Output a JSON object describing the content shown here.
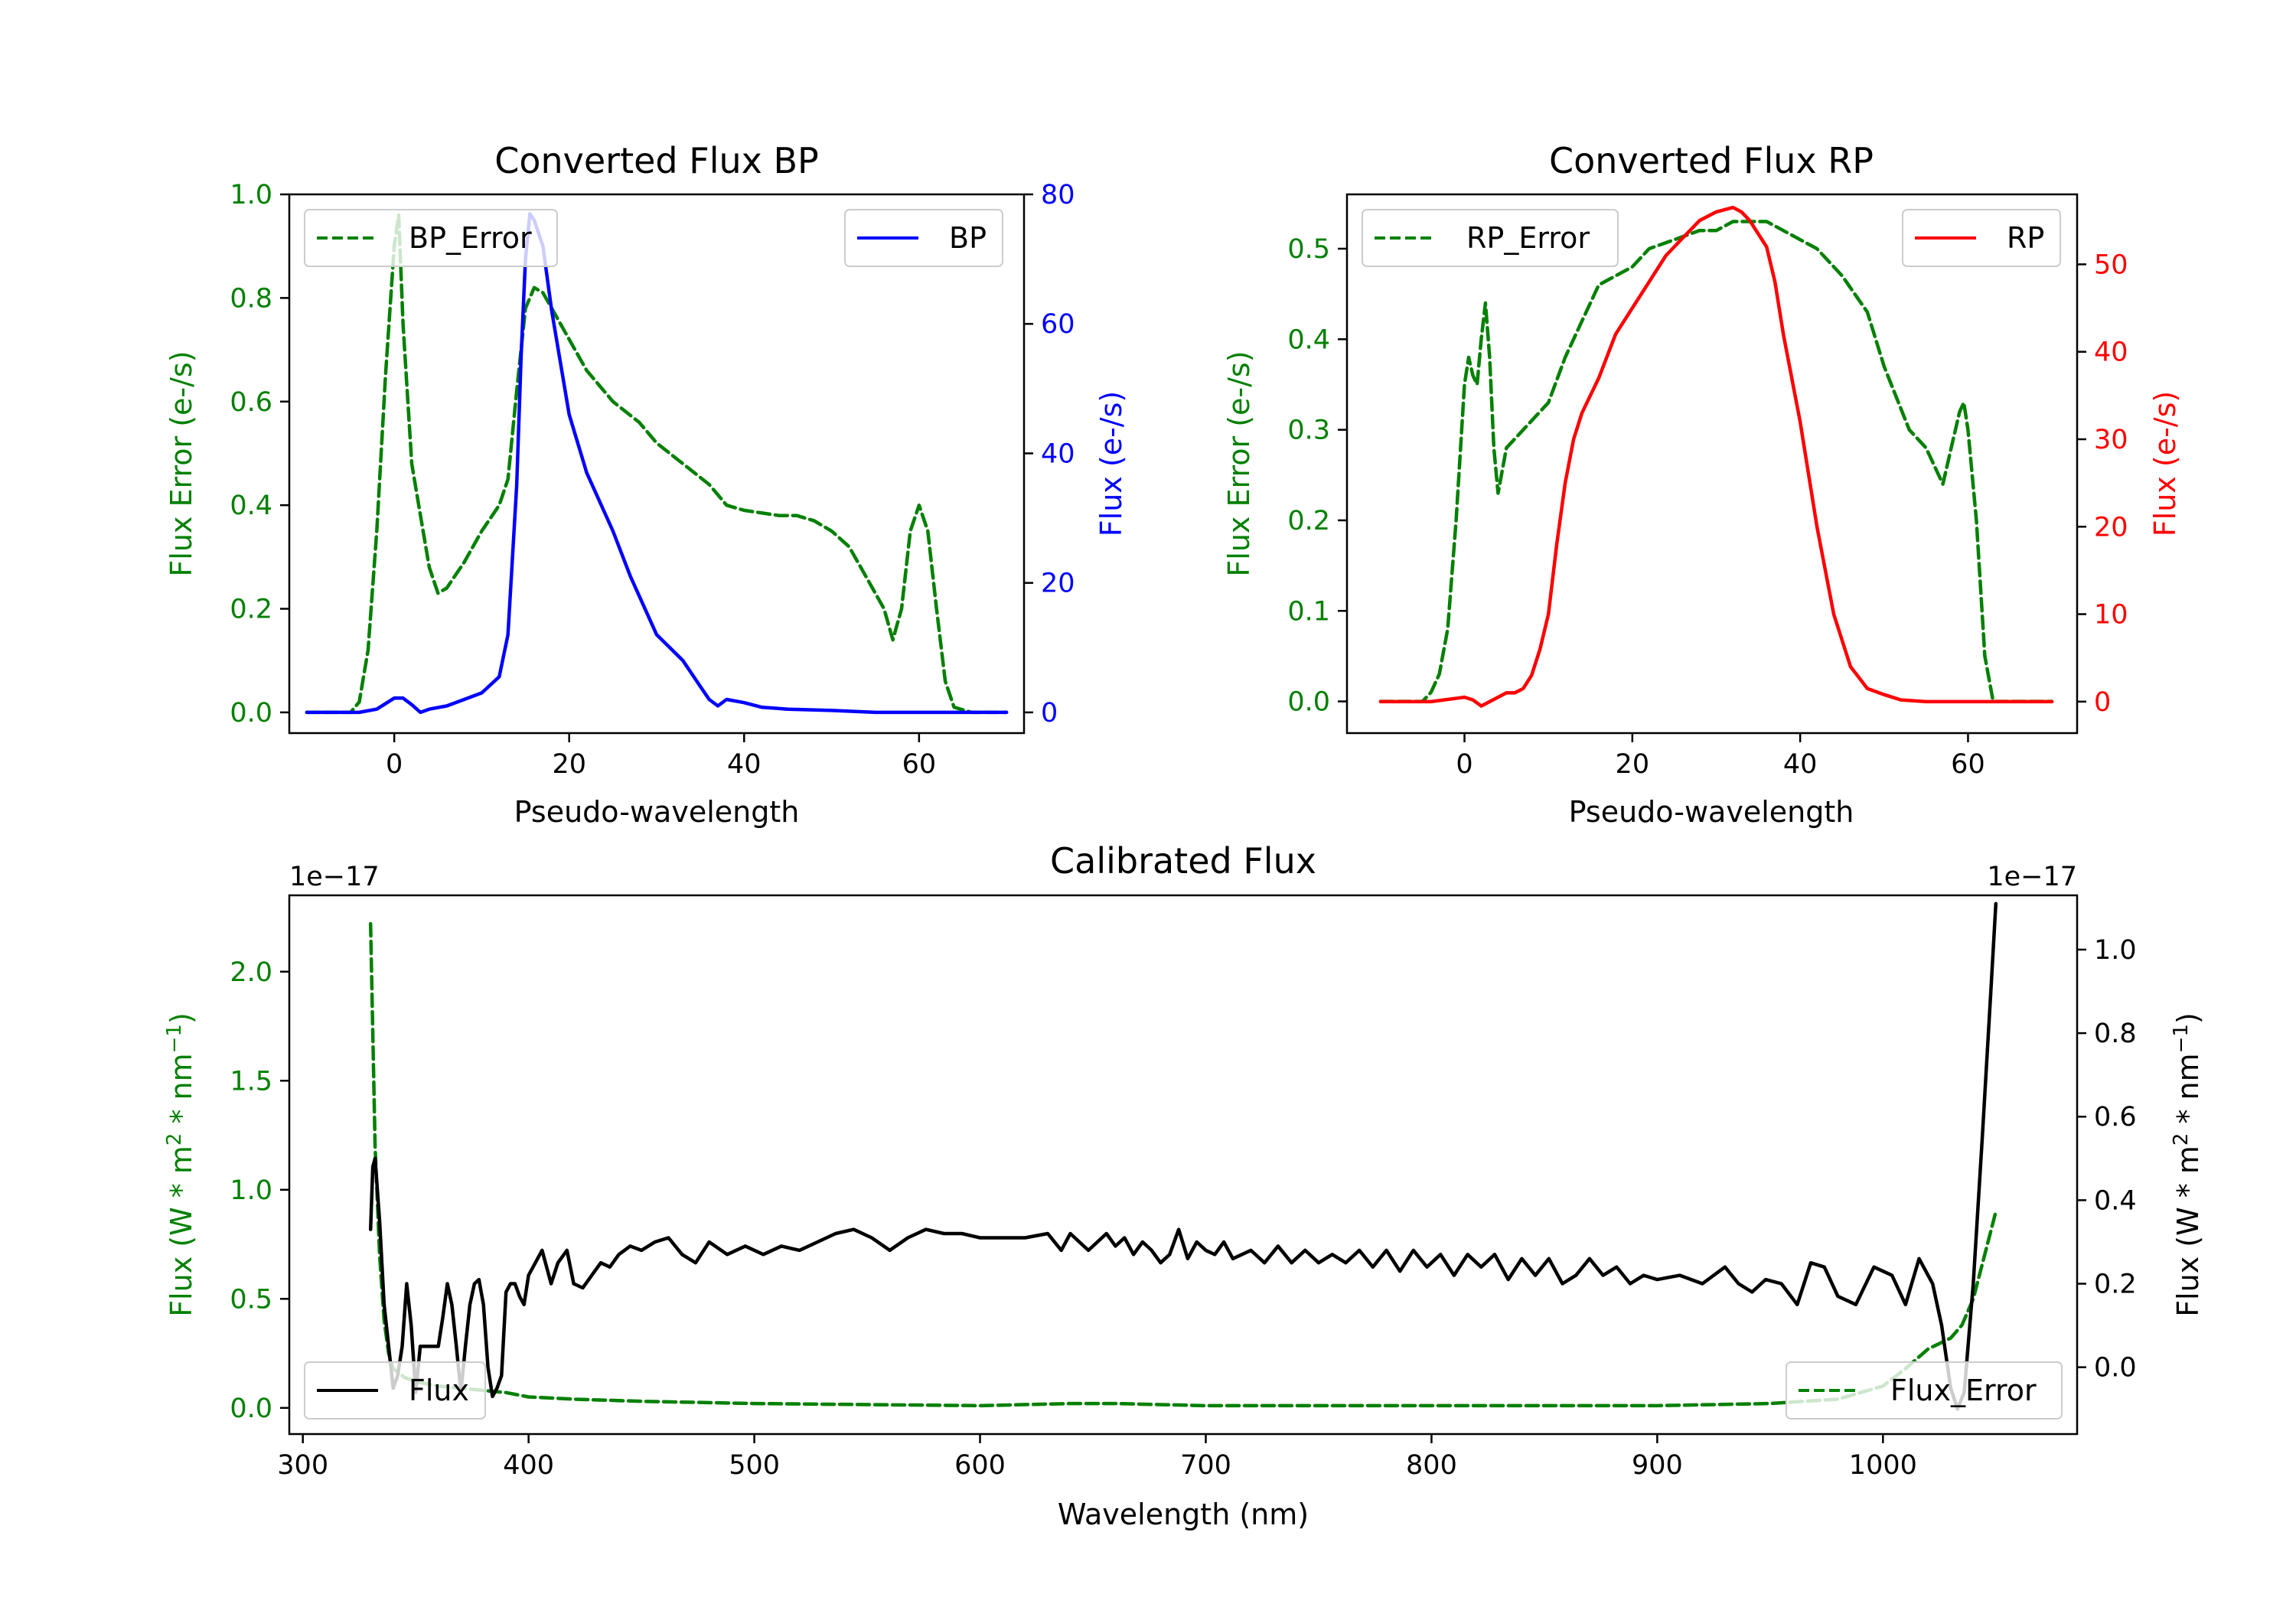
{
  "chart_data": [
    {
      "id": "bp",
      "type": "line",
      "title": "Converted Flux BP",
      "xlabel": "Pseudo-wavelength",
      "ylabel_left": "Flux Error (e-/s)",
      "ylabel_right": "Flux (e-/s)",
      "xlim": [
        -12,
        72
      ],
      "ylim_left": [
        -0.04,
        1.0
      ],
      "ylim_right": [
        -3.2,
        80
      ],
      "xticks": [
        0,
        20,
        40,
        60
      ],
      "yticks_left": [
        "0.0",
        "0.2",
        "0.4",
        "0.6",
        "0.8",
        "1.0"
      ],
      "yticks_right": [
        "0",
        "20",
        "40",
        "60",
        "80"
      ],
      "left_color": "#008000",
      "right_color": "#0000ff",
      "legend_left": "BP_Error",
      "legend_right": "BP",
      "series": [
        {
          "name": "BP_Error",
          "axis": "left",
          "color": "#008000",
          "dash": true,
          "x": [
            -10,
            -5,
            -4,
            -3,
            -2,
            -1,
            0,
            0.5,
            1,
            2,
            3,
            4,
            5,
            6,
            8,
            10,
            12,
            13,
            14,
            15,
            16,
            17,
            18,
            20,
            22,
            25,
            28,
            30,
            33,
            36,
            38,
            40,
            44,
            46,
            48,
            50,
            52,
            54,
            56,
            57,
            58,
            59,
            60,
            61,
            62,
            63,
            64,
            66,
            70
          ],
          "values": [
            0,
            0,
            0.02,
            0.12,
            0.35,
            0.65,
            0.9,
            0.96,
            0.75,
            0.48,
            0.38,
            0.28,
            0.23,
            0.24,
            0.29,
            0.35,
            0.4,
            0.45,
            0.62,
            0.78,
            0.82,
            0.81,
            0.78,
            0.72,
            0.66,
            0.6,
            0.56,
            0.52,
            0.48,
            0.44,
            0.4,
            0.39,
            0.38,
            0.38,
            0.37,
            0.35,
            0.32,
            0.26,
            0.2,
            0.14,
            0.2,
            0.35,
            0.4,
            0.35,
            0.2,
            0.06,
            0.01,
            0,
            0
          ]
        },
        {
          "name": "BP",
          "axis": "right",
          "color": "#0000ff",
          "dash": false,
          "x": [
            -10,
            -4,
            -2,
            0,
            1,
            2,
            3,
            4,
            6,
            8,
            10,
            12,
            13,
            14,
            14.5,
            15,
            15.5,
            16,
            17,
            18,
            19,
            20,
            22,
            25,
            27,
            30,
            33,
            35,
            36,
            37,
            38,
            40,
            42,
            45,
            50,
            55,
            60,
            65,
            70
          ],
          "values": [
            0,
            0,
            0.5,
            2.2,
            2.2,
            1.2,
            0,
            0.5,
            1,
            2,
            3,
            5.5,
            12,
            35,
            55,
            70,
            77,
            76,
            72,
            62,
            54,
            46,
            37,
            28,
            21,
            12,
            8,
            4,
            2,
            1,
            2,
            1.5,
            0.8,
            0.5,
            0.3,
            0,
            0,
            0,
            0
          ]
        }
      ]
    },
    {
      "id": "rp",
      "type": "line",
      "title": "Converted Flux RP",
      "xlabel": "Pseudo-wavelength",
      "ylabel_left": "Flux Error (e-/s)",
      "ylabel_right": "Flux (e-/s)",
      "xlim": [
        -14,
        73
      ],
      "ylim_left": [
        -0.035,
        0.56
      ],
      "ylim_right": [
        -3.6,
        58
      ],
      "xticks": [
        0,
        20,
        40,
        60
      ],
      "yticks_left": [
        "0.0",
        "0.1",
        "0.2",
        "0.3",
        "0.4",
        "0.5"
      ],
      "yticks_right": [
        "0",
        "10",
        "20",
        "30",
        "40",
        "50"
      ],
      "left_color": "#008000",
      "right_color": "#ff0000",
      "legend_left": "RP_Error",
      "legend_right": "RP",
      "series": [
        {
          "name": "RP_Error",
          "axis": "left",
          "color": "#008000",
          "dash": true,
          "x": [
            -10,
            -5,
            -4,
            -3,
            -2,
            -1,
            0,
            0.5,
            1,
            1.5,
            2,
            2.5,
            3,
            3.5,
            4,
            5,
            7,
            8,
            10,
            12,
            14,
            16,
            18,
            20,
            22,
            25,
            28,
            30,
            32,
            34,
            36,
            38,
            40,
            42,
            45,
            48,
            50,
            53,
            55,
            56,
            57,
            58,
            59,
            59.5,
            60,
            61,
            62,
            63,
            65,
            70
          ],
          "values": [
            0,
            0,
            0.01,
            0.03,
            0.08,
            0.2,
            0.35,
            0.38,
            0.36,
            0.35,
            0.4,
            0.44,
            0.38,
            0.28,
            0.23,
            0.28,
            0.3,
            0.31,
            0.33,
            0.38,
            0.42,
            0.46,
            0.47,
            0.48,
            0.5,
            0.51,
            0.52,
            0.52,
            0.53,
            0.53,
            0.53,
            0.52,
            0.51,
            0.5,
            0.47,
            0.43,
            0.37,
            0.3,
            0.28,
            0.26,
            0.24,
            0.28,
            0.32,
            0.33,
            0.3,
            0.2,
            0.05,
            0,
            0,
            0
          ]
        },
        {
          "name": "RP",
          "axis": "right",
          "color": "#ff0000",
          "dash": false,
          "x": [
            -10,
            -4,
            0,
            1,
            2,
            3,
            4,
            5,
            6,
            7,
            8,
            9,
            10,
            11,
            12,
            13,
            14,
            16,
            18,
            20,
            22,
            24,
            26,
            28,
            30,
            32,
            33,
            34,
            36,
            37,
            38,
            40,
            42,
            44,
            46,
            48,
            50,
            52,
            55,
            58,
            60,
            65,
            70
          ],
          "values": [
            0,
            0,
            0.5,
            0.2,
            -0.5,
            0,
            0.5,
            1,
            1,
            1.5,
            3,
            6,
            10,
            18,
            25,
            30,
            33,
            37,
            42,
            45,
            48,
            51,
            53,
            55,
            56,
            56.5,
            56,
            55,
            52,
            48,
            42,
            32,
            20,
            10,
            4,
            1.5,
            0.8,
            0.2,
            0,
            0,
            0,
            0,
            0
          ]
        }
      ]
    },
    {
      "id": "cal",
      "type": "line",
      "title": "Calibrated Flux",
      "xlabel": "Wavelength (nm)",
      "ylabel_left_main": "Flux (W * m",
      "ylabel_right_main": "Flux (W * m",
      "ylabel_sup1": "2",
      "ylabel_mid": " * nm",
      "ylabel_sup2": "−1",
      "ylabel_end": ")",
      "offset_left": "1e−17",
      "offset_right": "1e−17",
      "xlim": [
        294,
        1086
      ],
      "ylim_left": [
        -0.12,
        2.35
      ],
      "ylim_right": [
        -0.16,
        1.13
      ],
      "xticks": [
        300,
        400,
        500,
        600,
        700,
        800,
        900,
        1000
      ],
      "yticks_left": [
        "0.0",
        "0.5",
        "1.0",
        "1.5",
        "2.0"
      ],
      "yticks_right": [
        "0.0",
        "0.2",
        "0.4",
        "0.6",
        "0.8",
        "1.0"
      ],
      "left_color": "#008000",
      "right_color": "#000000",
      "legend_left": "Flux",
      "legend_right": "Flux_Error",
      "series": [
        {
          "name": "Flux_Error",
          "axis": "left",
          "color": "#008000",
          "dash": true,
          "x": [
            330,
            332,
            334,
            336,
            338,
            340,
            345,
            350,
            360,
            370,
            380,
            390,
            400,
            420,
            450,
            500,
            600,
            640,
            660,
            700,
            800,
            900,
            950,
            980,
            1000,
            1010,
            1020,
            1030,
            1035,
            1040,
            1045,
            1050
          ],
          "values": [
            2.22,
            1.2,
            0.7,
            0.4,
            0.25,
            0.18,
            0.14,
            0.12,
            0.1,
            0.09,
            0.08,
            0.07,
            0.05,
            0.04,
            0.03,
            0.02,
            0.01,
            0.02,
            0.02,
            0.01,
            0.01,
            0.01,
            0.02,
            0.04,
            0.1,
            0.18,
            0.27,
            0.32,
            0.38,
            0.5,
            0.7,
            0.9
          ]
        },
        {
          "name": "Flux",
          "axis": "right",
          "color": "#000000",
          "dash": false,
          "x": [
            330,
            331,
            332,
            334,
            336,
            338,
            340,
            342,
            344,
            346,
            348,
            350,
            352,
            354,
            356,
            358,
            360,
            362,
            364,
            366,
            368,
            370,
            372,
            374,
            376,
            378,
            380,
            382,
            384,
            386,
            388,
            390,
            392,
            394,
            396,
            398,
            400,
            403,
            406,
            410,
            413,
            417,
            420,
            424,
            428,
            432,
            436,
            440,
            445,
            450,
            456,
            462,
            468,
            474,
            480,
            488,
            496,
            504,
            512,
            520,
            528,
            536,
            544,
            552,
            560,
            568,
            576,
            584,
            592,
            600,
            610,
            620,
            630,
            636,
            640,
            644,
            648,
            652,
            656,
            660,
            664,
            668,
            672,
            676,
            680,
            684,
            688,
            692,
            696,
            700,
            704,
            708,
            712,
            716,
            720,
            726,
            732,
            738,
            744,
            750,
            756,
            762,
            768,
            774,
            780,
            786,
            792,
            798,
            804,
            810,
            816,
            822,
            828,
            834,
            840,
            846,
            852,
            858,
            864,
            870,
            876,
            882,
            888,
            894,
            900,
            910,
            920,
            930,
            936,
            942,
            948,
            955,
            962,
            968,
            974,
            980,
            988,
            996,
            1004,
            1010,
            1016,
            1022,
            1026,
            1030,
            1033,
            1036,
            1040,
            1044,
            1048,
            1050
          ],
          "values": [
            0.33,
            0.48,
            0.5,
            0.35,
            0.15,
            0.05,
            -0.05,
            -0.02,
            0.05,
            0.2,
            0.1,
            -0.06,
            0.05,
            0.05,
            0.05,
            0.05,
            0.05,
            0.12,
            0.2,
            0.15,
            0.05,
            -0.06,
            0.05,
            0.15,
            0.2,
            0.21,
            0.15,
            0.0,
            -0.07,
            -0.05,
            -0.02,
            0.18,
            0.2,
            0.2,
            0.17,
            0.15,
            0.22,
            0.25,
            0.28,
            0.2,
            0.25,
            0.28,
            0.2,
            0.19,
            0.22,
            0.25,
            0.24,
            0.27,
            0.29,
            0.28,
            0.3,
            0.31,
            0.27,
            0.25,
            0.3,
            0.27,
            0.29,
            0.27,
            0.29,
            0.28,
            0.3,
            0.32,
            0.33,
            0.31,
            0.28,
            0.31,
            0.33,
            0.32,
            0.32,
            0.31,
            0.31,
            0.31,
            0.32,
            0.28,
            0.32,
            0.3,
            0.28,
            0.3,
            0.32,
            0.29,
            0.31,
            0.27,
            0.3,
            0.28,
            0.25,
            0.27,
            0.33,
            0.26,
            0.3,
            0.28,
            0.27,
            0.3,
            0.26,
            0.27,
            0.28,
            0.25,
            0.29,
            0.25,
            0.28,
            0.25,
            0.27,
            0.25,
            0.28,
            0.24,
            0.28,
            0.23,
            0.28,
            0.24,
            0.27,
            0.22,
            0.27,
            0.24,
            0.27,
            0.21,
            0.26,
            0.22,
            0.26,
            0.2,
            0.22,
            0.26,
            0.22,
            0.24,
            0.2,
            0.22,
            0.21,
            0.22,
            0.2,
            0.24,
            0.2,
            0.18,
            0.21,
            0.2,
            0.15,
            0.25,
            0.24,
            0.17,
            0.15,
            0.24,
            0.22,
            0.15,
            0.26,
            0.2,
            0.1,
            -0.05,
            -0.1,
            -0.06,
            0.2,
            0.55,
            0.92,
            1.11
          ]
        }
      ]
    }
  ]
}
